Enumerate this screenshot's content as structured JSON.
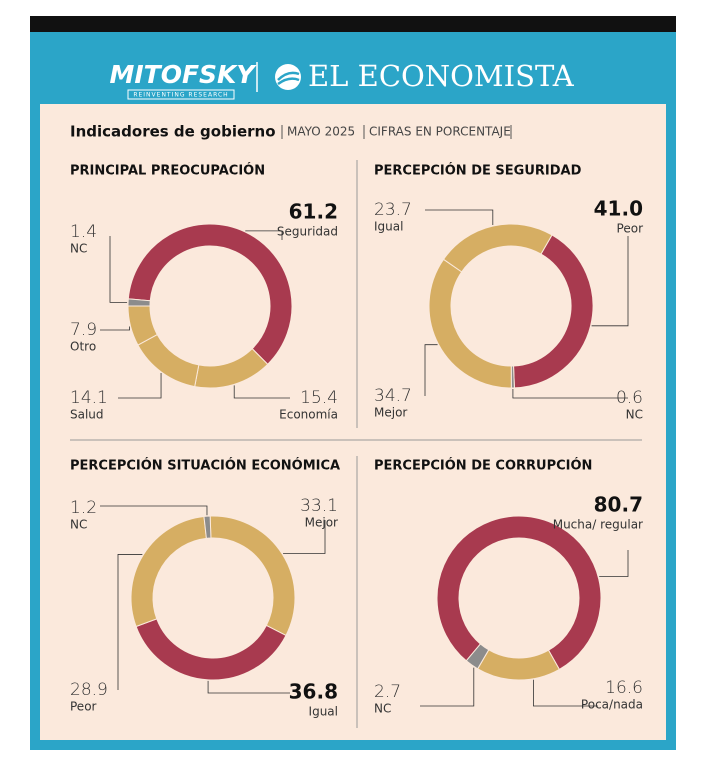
{
  "header": {
    "brand": "MITOFSKY",
    "tagline": "REINVENTING RESEARCH",
    "partner": "EL ECONOMISTA",
    "title": "Indicadores de gobierno",
    "date": "MAYO 2025",
    "note": "CIFRAS EN PORCENTAJE"
  },
  "chart_data": [
    {
      "type": "donut",
      "title": "PRINCIPAL PREOCUPACIÓN",
      "categories": [
        "Seguridad",
        "Economía",
        "Salud",
        "Otro",
        "NC"
      ],
      "values": [
        61.2,
        15.4,
        14.1,
        7.9,
        1.4
      ],
      "value_labels": [
        "61.2",
        "15.4",
        "14.1",
        "7.9",
        "1.4"
      ],
      "colors": [
        "#a83a4f",
        "#d6ae63",
        "#d6ae63",
        "#d6ae63",
        "#8c8c8c"
      ]
    },
    {
      "type": "donut",
      "title": "PERCEPCIÓN DE SEGURIDAD",
      "categories": [
        "Peor",
        "NC",
        "Mejor",
        "Igual"
      ],
      "values": [
        41.0,
        0.6,
        34.7,
        23.7
      ],
      "value_labels": [
        "41.0",
        "0.6",
        "34.7",
        "23.7"
      ],
      "colors": [
        "#a83a4f",
        "#8c8c8c",
        "#d6ae63",
        "#d6ae63"
      ]
    },
    {
      "type": "donut",
      "title": "PERCEPCIÓN SITUACIÓN ECONÓMICA",
      "categories": [
        "Mejor",
        "Igual",
        "Peor",
        "NC"
      ],
      "values": [
        33.1,
        36.8,
        28.9,
        1.2
      ],
      "value_labels": [
        "33.1",
        "36.8",
        "28.9",
        "1.2"
      ],
      "colors": [
        "#d6ae63",
        "#a83a4f",
        "#d6ae63",
        "#8c8c8c"
      ]
    },
    {
      "type": "donut",
      "title": "PERCEPCIÓN DE CORRUPCIÓN",
      "categories": [
        "Mucha/ regular",
        "Poca/nada",
        "NC"
      ],
      "values": [
        80.7,
        16.6,
        2.7
      ],
      "value_labels": [
        "80.7",
        "16.6",
        "2.7"
      ],
      "colors": [
        "#a83a4f",
        "#d6ae63",
        "#8c8c8c"
      ]
    }
  ]
}
